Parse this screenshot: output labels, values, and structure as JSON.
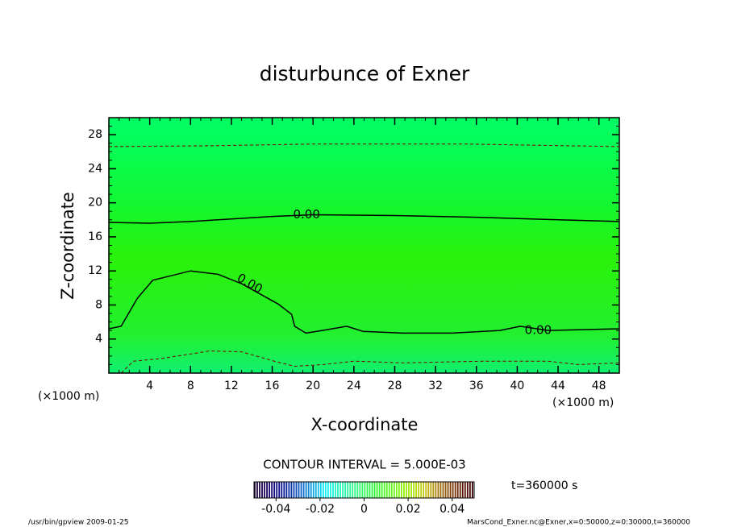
{
  "chart_data": {
    "type": "contour",
    "title": "disturbunce of Exner",
    "x_label": "X-coordinate",
    "y_label": "Z-coordinate",
    "x_unit": "(×1000 m)",
    "y_unit": "(×1000 m)",
    "xlim": [
      0,
      50
    ],
    "ylim": [
      0,
      30
    ],
    "xticks": [
      4,
      8,
      12,
      16,
      20,
      24,
      28,
      32,
      36,
      40,
      44,
      48
    ],
    "yticks": [
      4,
      8,
      12,
      16,
      20,
      24,
      28
    ],
    "contours": [
      {
        "level": 0,
        "label": "0.00",
        "x": [
          0,
          4,
          8,
          12,
          16,
          20,
          28,
          36,
          44,
          50
        ],
        "y": [
          17.7,
          17.6,
          17.8,
          18.1,
          18.4,
          18.6,
          18.5,
          18.3,
          18.0,
          17.8
        ]
      },
      {
        "level": 0,
        "label": "0.00",
        "x": [
          0,
          1.2,
          2.8,
          4.3,
          8,
          10.7,
          13,
          16.6,
          17.9,
          18.2,
          19.3,
          20.9,
          23.3,
          24.9,
          28.8,
          33.6,
          38.3,
          40.3,
          43,
          50
        ],
        "y": [
          5.2,
          5.5,
          8.8,
          10.9,
          12.0,
          11.6,
          10.5,
          8.1,
          6.9,
          5.5,
          4.7,
          5.0,
          5.5,
          4.9,
          4.7,
          4.7,
          5.0,
          5.5,
          5.0,
          5.2
        ]
      },
      {
        "level": -0.005,
        "x": [
          0,
          10,
          20,
          35,
          50
        ],
        "y": [
          26.6,
          26.7,
          26.9,
          26.9,
          26.6
        ]
      },
      {
        "level": -0.005,
        "x": [
          1.2,
          2.4,
          5.1,
          9.9,
          13,
          16.2,
          18.2,
          21,
          24,
          28.8,
          36.7,
          43,
          46,
          50
        ],
        "y": [
          0,
          1.4,
          1.7,
          2.6,
          2.5,
          1.4,
          0.8,
          1.0,
          1.4,
          1.2,
          1.4,
          1.4,
          1.0,
          1.2
        ]
      }
    ],
    "contour_interval": "CONTOUR INTERVAL = 5.000E-03",
    "time_label": "t=360000 s",
    "clim": [
      -0.05,
      0.05
    ],
    "cticks": [
      -0.04,
      -0.02,
      0,
      0.02,
      0.04
    ],
    "footer_left": "/usr/bin/gpview  2009-01-25",
    "footer_right": "MarsCond_Exner.nc@Exner,x=0:50000,z=0:30000,t=360000"
  }
}
